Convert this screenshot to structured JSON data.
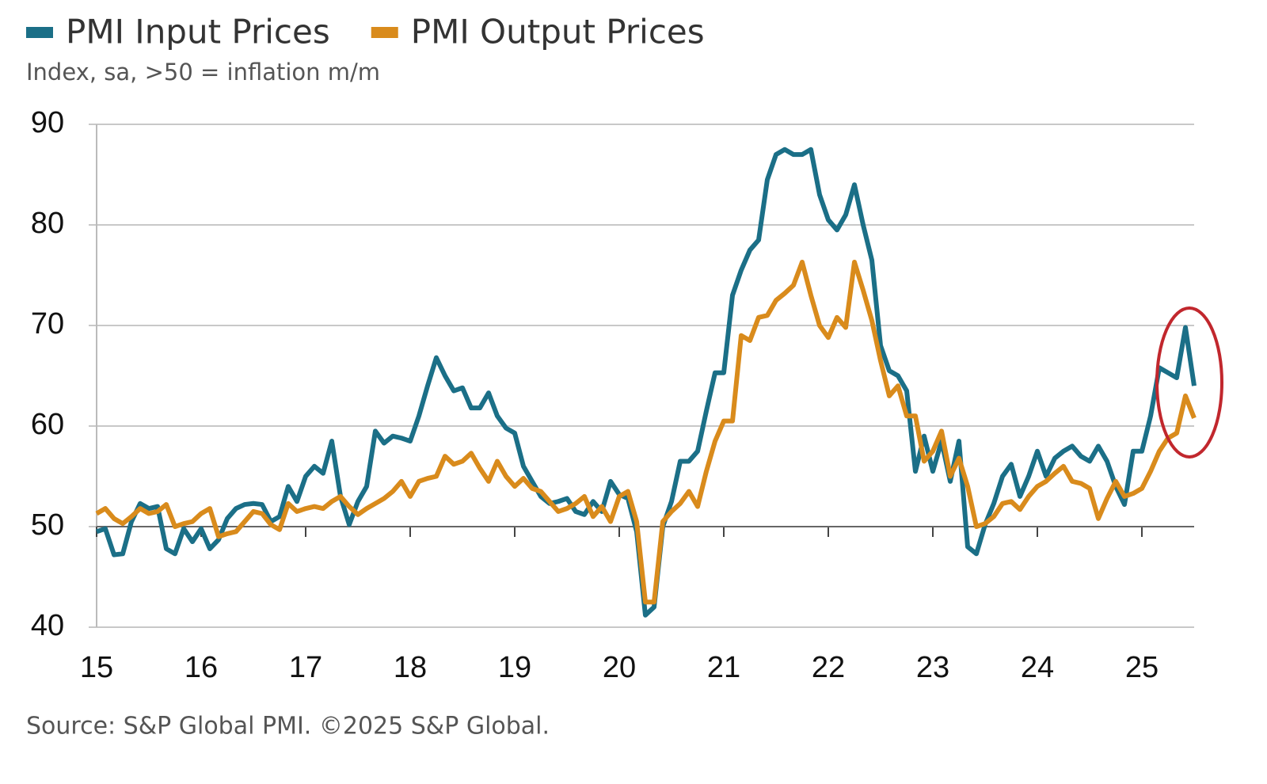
{
  "chart_data": {
    "type": "line",
    "subtitle": "Index, sa, >50 = inflation m/m",
    "source": "Source: S&P Global PMI. ©2025 S&P Global.",
    "categories": [
      "15",
      null,
      null,
      null,
      null,
      null,
      null,
      null,
      null,
      null,
      null,
      null,
      "16",
      null,
      null,
      null,
      null,
      null,
      null,
      null,
      null,
      null,
      null,
      null,
      "17",
      null,
      null,
      null,
      null,
      null,
      null,
      null,
      null,
      null,
      null,
      null,
      "18",
      null,
      null,
      null,
      null,
      null,
      null,
      null,
      null,
      null,
      null,
      null,
      "19",
      null,
      null,
      null,
      null,
      null,
      null,
      null,
      null,
      null,
      null,
      null,
      "20",
      null,
      null,
      null,
      null,
      null,
      null,
      null,
      null,
      null,
      null,
      null,
      "21",
      null,
      null,
      null,
      null,
      null,
      null,
      null,
      null,
      null,
      null,
      null,
      "22",
      null,
      null,
      null,
      null,
      null,
      null,
      null,
      null,
      null,
      null,
      null,
      "23",
      null,
      null,
      null,
      null,
      null,
      null,
      null,
      null,
      null,
      null,
      null,
      "24",
      null,
      null,
      null,
      null,
      null,
      null,
      null,
      null,
      null,
      null,
      null,
      "25",
      null,
      null,
      null,
      null,
      null,
      null
    ],
    "series": [
      {
        "name": "PMI Input Prices",
        "color": "#1b6f87",
        "values": [
          49.5,
          49.8,
          47.2,
          47.3,
          50.5,
          52.3,
          51.8,
          52.0,
          47.8,
          47.3,
          49.8,
          48.5,
          49.8,
          47.8,
          48.7,
          50.8,
          51.8,
          52.2,
          52.3,
          52.2,
          50.5,
          51.0,
          54.0,
          52.5,
          55.0,
          56.0,
          55.3,
          58.5,
          53.0,
          50.2,
          52.5,
          54.0,
          59.5,
          58.3,
          59.0,
          58.8,
          58.5,
          61.0,
          64.0,
          66.8,
          65.0,
          63.5,
          63.8,
          61.8,
          61.8,
          63.3,
          61.0,
          59.8,
          59.3,
          56.0,
          54.5,
          53.0,
          52.3,
          52.5,
          52.8,
          51.5,
          51.2,
          52.5,
          51.5,
          54.5,
          53.2,
          52.8,
          49.5,
          41.2,
          42.0,
          50.0,
          52.5,
          56.5,
          56.5,
          57.5,
          61.5,
          65.3,
          65.3,
          73.0,
          75.5,
          77.5,
          78.5,
          84.5,
          87.0,
          87.5,
          87.0,
          87.0,
          87.5,
          83.0,
          80.5,
          79.5,
          81.0,
          84.0,
          80.0,
          76.5,
          68.0,
          65.5,
          65.0,
          63.5,
          55.5,
          59.0,
          55.5,
          58.5,
          54.5,
          58.5,
          48.0,
          47.3,
          50.2,
          52.3,
          55.0,
          56.2,
          53.0,
          55.0,
          57.5,
          55.0,
          56.8,
          57.5,
          58.0,
          57.0,
          56.5,
          58.0,
          56.5,
          54.0,
          52.2,
          57.5,
          57.5,
          61.0,
          65.8,
          65.3,
          64.8,
          69.8,
          64.0
        ]
      },
      {
        "name": "PMI Output Prices",
        "color": "#d98b1c",
        "values": [
          51.3,
          51.8,
          50.8,
          50.3,
          51.0,
          51.8,
          51.3,
          51.5,
          52.2,
          50.0,
          50.3,
          50.5,
          51.3,
          51.8,
          49.0,
          49.3,
          49.5,
          50.5,
          51.5,
          51.3,
          50.2,
          49.7,
          52.3,
          51.5,
          51.8,
          52.0,
          51.8,
          52.5,
          53.0,
          52.0,
          51.2,
          51.8,
          52.3,
          52.8,
          53.5,
          54.5,
          53.0,
          54.5,
          54.8,
          55.0,
          57.0,
          56.2,
          56.5,
          57.3,
          55.8,
          54.5,
          56.5,
          55.0,
          54.0,
          54.8,
          53.8,
          53.5,
          52.5,
          51.5,
          51.8,
          52.3,
          53.0,
          51.0,
          52.0,
          50.5,
          53.0,
          53.5,
          50.5,
          42.5,
          42.5,
          50.5,
          51.5,
          52.3,
          53.5,
          52.0,
          55.5,
          58.5,
          60.5,
          60.5,
          69.0,
          68.5,
          70.8,
          71.0,
          72.5,
          73.2,
          74.0,
          76.3,
          73.0,
          70.0,
          68.8,
          70.8,
          69.8,
          76.3,
          73.5,
          70.5,
          66.5,
          63.0,
          64.0,
          61.0,
          61.0,
          56.5,
          57.5,
          59.5,
          55.0,
          56.8,
          54.0,
          50.0,
          50.3,
          51.0,
          52.3,
          52.5,
          51.7,
          53.0,
          54.0,
          54.5,
          55.3,
          56.0,
          54.5,
          54.3,
          53.8,
          50.8,
          52.8,
          54.5,
          53.0,
          53.3,
          53.8,
          55.5,
          57.5,
          58.8,
          59.3,
          63.0,
          60.8
        ]
      }
    ],
    "ylim": [
      40,
      90
    ],
    "yticks": [
      40,
      50,
      60,
      70,
      80,
      90
    ],
    "grid": true
  }
}
